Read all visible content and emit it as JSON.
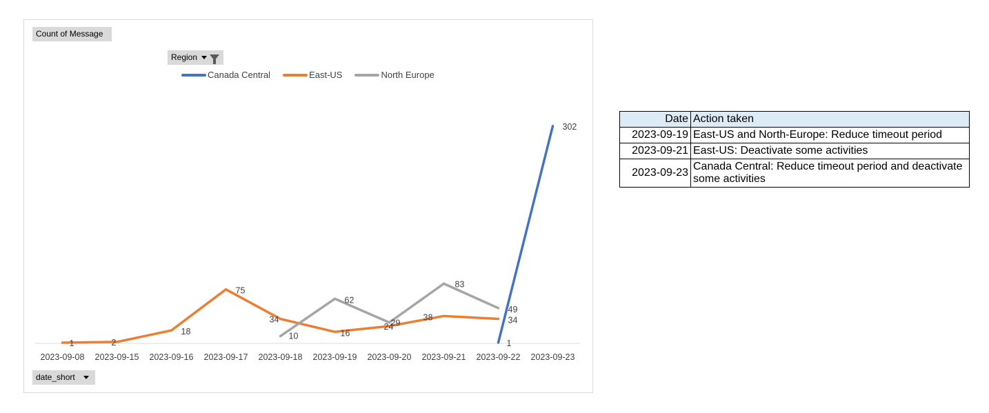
{
  "chart_data": {
    "type": "line",
    "value_field": "Count of Message",
    "legend_field": "Region",
    "axis_field": "date_short",
    "legend_position": "top",
    "categories": [
      "2023-09-08",
      "2023-09-15",
      "2023-09-16",
      "2023-09-17",
      "2023-09-18",
      "2023-09-19",
      "2023-09-20",
      "2023-09-21",
      "2023-09-22",
      "2023-09-23"
    ],
    "ylim": [
      0,
      320
    ],
    "grid": false,
    "series": [
      {
        "name": "Canada Central",
        "color": "#4472c4",
        "values": [
          null,
          null,
          null,
          null,
          null,
          null,
          null,
          null,
          1,
          302
        ],
        "labels": [
          null,
          null,
          null,
          null,
          null,
          null,
          null,
          null,
          "1",
          "302"
        ]
      },
      {
        "name": "East-US",
        "color": "#ed7d31",
        "values": [
          1,
          2,
          18,
          75,
          34,
          16,
          24,
          38,
          34,
          null
        ],
        "labels": [
          "1",
          "2",
          "18",
          "75",
          "34",
          "16",
          "24",
          "38",
          "34",
          null
        ]
      },
      {
        "name": "North Europe",
        "color": "#a5a5a5",
        "values": [
          null,
          null,
          null,
          null,
          10,
          62,
          29,
          83,
          49,
          null
        ],
        "labels": [
          null,
          null,
          null,
          null,
          "10",
          "62",
          "29",
          "83",
          "49",
          null
        ]
      }
    ]
  },
  "table": {
    "headers": {
      "date": "Date",
      "action": "Action taken"
    },
    "rows": [
      {
        "date": "2023-09-19",
        "action": "East-US and North-Europe: Reduce timeout period"
      },
      {
        "date": "2023-09-21",
        "action": "East-US: Deactivate some activities"
      },
      {
        "date": "2023-09-23",
        "action": "Canada Central: Reduce timeout period and deactivate some activities"
      }
    ]
  }
}
